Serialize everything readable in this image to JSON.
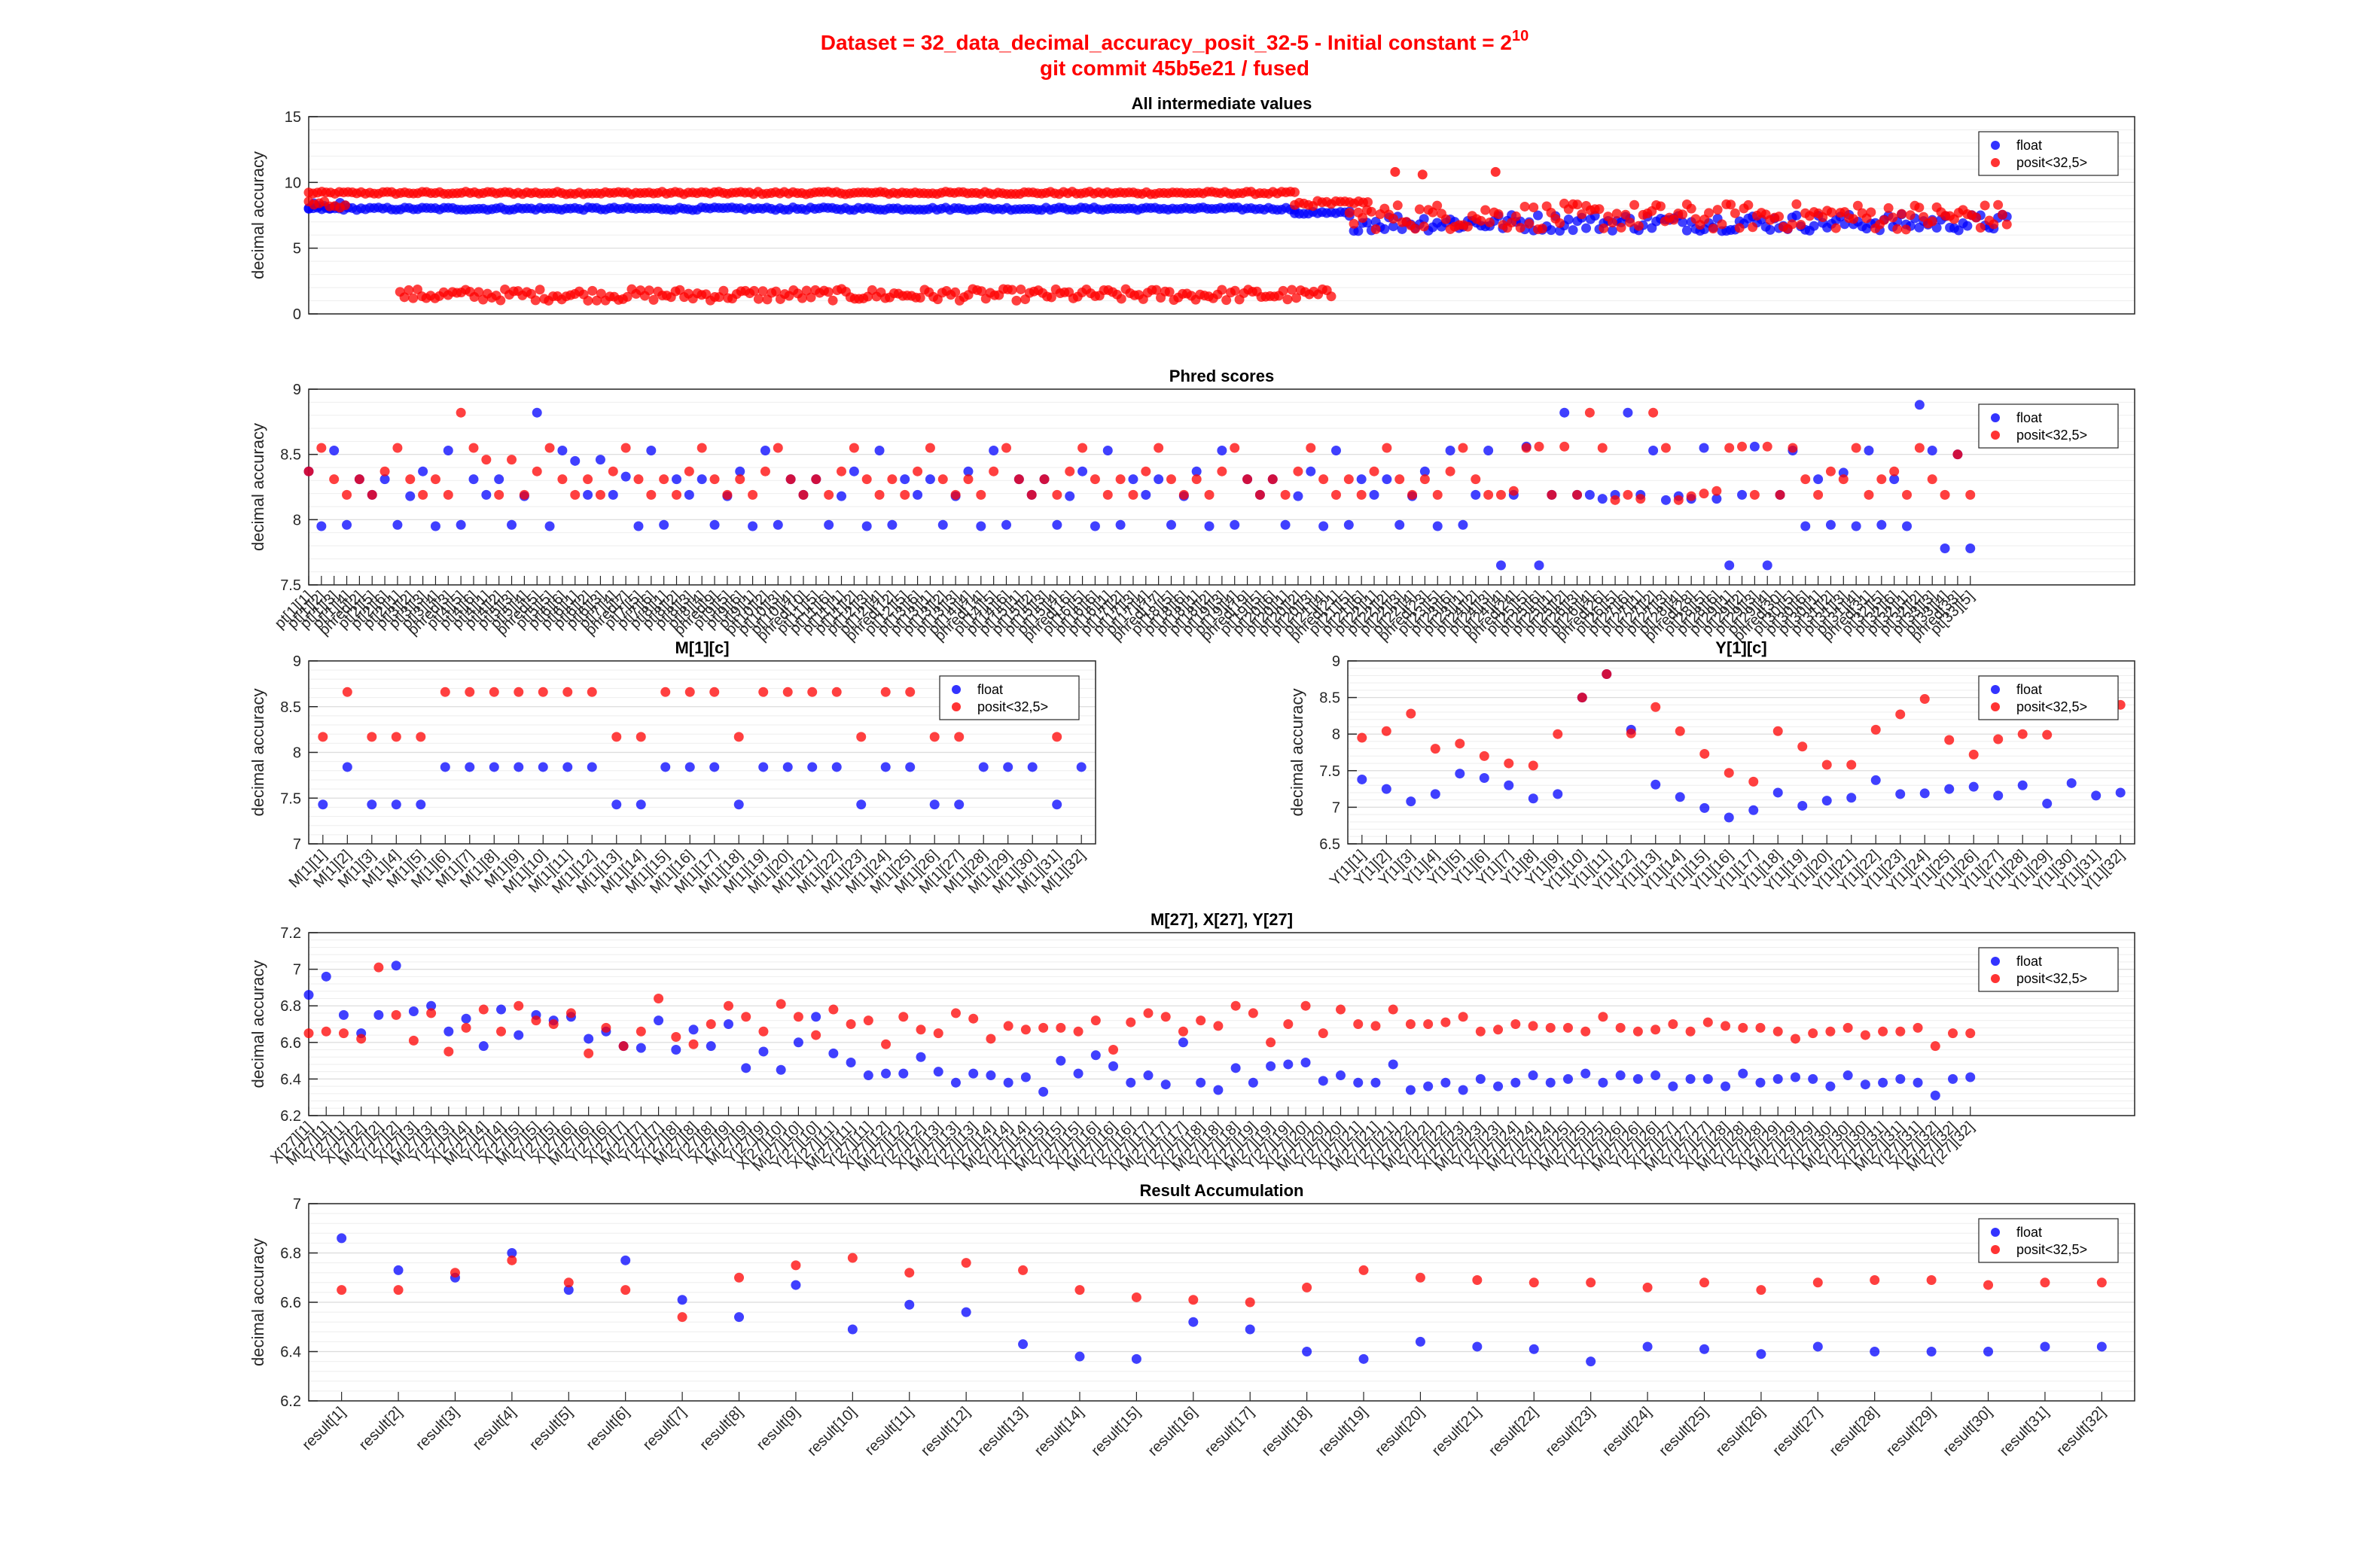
{
  "figure": {
    "title_line1": "Dataset = 32_data_decimal_accuracy_posit_32-5 - Initial constant = 2",
    "title_exponent": "10",
    "title_line2": "git commit 45b5e21 / fused",
    "colors": {
      "title": "#ff0000",
      "float": "#0000ff",
      "posit": "#ff0000"
    }
  },
  "chart_data": [
    {
      "id": "all",
      "type": "scatter",
      "title": "All intermediate values",
      "ylabel": "decimal accuracy",
      "ylim": [
        0,
        15
      ],
      "yticks": [
        0,
        5,
        10,
        15
      ],
      "grid": true,
      "legend_position": "top-right",
      "series": [
        {
          "name": "float"
        },
        {
          "name": "posit<32,5>"
        }
      ],
      "bands": [
        {
          "series": "posit<32,5>",
          "x_from": 0.0,
          "x_to": 0.54,
          "y_from": 9.1,
          "y_to": 9.3
        },
        {
          "series": "float",
          "x_from": 0.0,
          "x_to": 0.54,
          "y_from": 7.9,
          "y_to": 8.1
        },
        {
          "series": "posit<32,5>",
          "x_from": 0.05,
          "x_to": 0.56,
          "y_from": 1.0,
          "y_to": 1.9
        },
        {
          "series": "float",
          "x_from": 0.54,
          "x_to": 0.57,
          "y_from": 7.6,
          "y_to": 7.8
        },
        {
          "series": "posit<32,5>",
          "x_from": 0.54,
          "x_to": 0.58,
          "y_from": 8.2,
          "y_to": 8.6
        },
        {
          "series": "float",
          "x_from": 0.57,
          "x_to": 0.93,
          "y_from": 6.3,
          "y_to": 7.6
        },
        {
          "series": "posit<32,5>",
          "x_from": 0.57,
          "x_to": 0.93,
          "y_from": 6.4,
          "y_to": 8.4
        },
        {
          "series": "float",
          "x_from": 0.0,
          "x_to": 0.02,
          "y_from": 7.7,
          "y_to": 8.6
        },
        {
          "series": "posit<32,5>",
          "x_from": 0.0,
          "x_to": 0.02,
          "y_from": 8.0,
          "y_to": 8.7
        }
      ],
      "outliers": [
        {
          "x": 0.595,
          "y": 10.8
        },
        {
          "x": 0.61,
          "y": 10.6
        },
        {
          "x": 0.65,
          "y": 10.8
        }
      ]
    },
    {
      "id": "phred",
      "type": "scatter",
      "title": "Phred scores",
      "ylabel": "decimal accuracy",
      "ylim": [
        7.5,
        9
      ],
      "yticks": [
        7.5,
        8,
        8.5,
        9
      ],
      "grid": true,
      "legend_position": "top-right",
      "n": 132,
      "series": [
        {
          "name": "float",
          "values": [
            8.37,
            7.95,
            8.53,
            7.96,
            8.31,
            8.19,
            8.31,
            7.96,
            8.18,
            8.37,
            7.95,
            8.53,
            7.96,
            8.31,
            8.19,
            8.31,
            7.96,
            8.18,
            8.82,
            7.95,
            8.53,
            8.45,
            8.19,
            8.46,
            8.19,
            8.33,
            7.95,
            8.53,
            7.96,
            8.31,
            8.19,
            8.31,
            7.96,
            8.18,
            8.37,
            7.95,
            8.53,
            7.96,
            8.31,
            8.19,
            8.31,
            7.96,
            8.18,
            8.37,
            7.95,
            8.53,
            7.96,
            8.31,
            8.19,
            8.31,
            7.96,
            8.18,
            8.37,
            7.95,
            8.53,
            7.96,
            8.31,
            8.19,
            8.31,
            7.96,
            8.18,
            8.37,
            7.95,
            8.53,
            7.96,
            8.31,
            8.19,
            8.31,
            7.96,
            8.18,
            8.37,
            7.95,
            8.53,
            7.96,
            8.31,
            8.19,
            8.31,
            7.96,
            8.18,
            8.37,
            7.95,
            8.53,
            7.96,
            8.31,
            8.19,
            8.31,
            7.96,
            8.18,
            8.37,
            7.95,
            8.53,
            7.96,
            8.19,
            8.53,
            7.65,
            8.19,
            8.56,
            7.65,
            8.19,
            8.82,
            8.19,
            8.19,
            8.16,
            8.19,
            8.82,
            8.19,
            8.53,
            8.15,
            8.18,
            8.16,
            8.55,
            8.16,
            7.65,
            8.19,
            8.56,
            7.65,
            8.19,
            8.53,
            7.95,
            8.31,
            7.96,
            8.36,
            7.95,
            8.53,
            7.96,
            8.31,
            7.95,
            8.88,
            8.53,
            7.78,
            8.5,
            7.78
          ]
        },
        {
          "name": "posit<32,5>",
          "values": [
            8.37,
            8.55,
            8.31,
            8.19,
            8.31,
            8.19,
            8.37,
            8.55,
            8.31,
            8.19,
            8.31,
            8.19,
            8.82,
            8.55,
            8.46,
            8.19,
            8.46,
            8.19,
            8.37,
            8.55,
            8.31,
            8.19,
            8.31,
            8.19,
            8.37,
            8.55,
            8.31,
            8.19,
            8.31,
            8.19,
            8.37,
            8.55,
            8.31,
            8.19,
            8.31,
            8.19,
            8.37,
            8.55,
            8.31,
            8.19,
            8.31,
            8.19,
            8.37,
            8.55,
            8.31,
            8.19,
            8.31,
            8.19,
            8.37,
            8.55,
            8.31,
            8.19,
            8.31,
            8.19,
            8.37,
            8.55,
            8.31,
            8.19,
            8.31,
            8.19,
            8.37,
            8.55,
            8.31,
            8.19,
            8.31,
            8.19,
            8.37,
            8.55,
            8.31,
            8.19,
            8.31,
            8.19,
            8.37,
            8.55,
            8.31,
            8.19,
            8.31,
            8.19,
            8.37,
            8.55,
            8.31,
            8.19,
            8.31,
            8.19,
            8.37,
            8.55,
            8.31,
            8.19,
            8.31,
            8.19,
            8.37,
            8.55,
            8.31,
            8.19,
            8.19,
            8.22,
            8.55,
            8.56,
            8.19,
            8.56,
            8.19,
            8.82,
            8.55,
            8.15,
            8.19,
            8.16,
            8.82,
            8.55,
            8.15,
            8.18,
            8.2,
            8.22,
            8.55,
            8.56,
            8.19,
            8.56,
            8.19,
            8.55,
            8.31,
            8.19,
            8.37,
            8.31,
            8.55,
            8.19,
            8.31,
            8.37,
            8.19,
            8.55,
            8.31,
            8.19,
            8.5,
            8.19
          ]
        }
      ]
    },
    {
      "id": "M",
      "type": "scatter",
      "title": "M[1][c]",
      "ylabel": "decimal accuracy",
      "ylim": [
        7,
        9
      ],
      "yticks": [
        7,
        7.5,
        8,
        8.5,
        9
      ],
      "grid": true,
      "legend_position": "top-right",
      "categories": [
        "M[1][1]",
        "M[1][2]",
        "M[1][3]",
        "M[1][4]",
        "M[1][5]",
        "M[1][6]",
        "M[1][7]",
        "M[1][8]",
        "M[1][9]",
        "M[1][10]",
        "M[1][11]",
        "M[1][12]",
        "M[1][13]",
        "M[1][14]",
        "M[1][15]",
        "M[1][16]",
        "M[1][17]",
        "M[1][18]",
        "M[1][19]",
        "M[1][20]",
        "M[1][21]",
        "M[1][22]",
        "M[1][23]",
        "M[1][24]",
        "M[1][25]",
        "M[1][26]",
        "M[1][27]",
        "M[1][28]",
        "M[1][29]",
        "M[1][30]",
        "M[1][31]",
        "M[1][32]"
      ],
      "series": [
        {
          "name": "float",
          "values": [
            7.43,
            7.84,
            7.43,
            7.43,
            7.43,
            7.84,
            7.84,
            7.84,
            7.84,
            7.84,
            7.84,
            7.84,
            7.43,
            7.43,
            7.84,
            7.84,
            7.84,
            7.43,
            7.84,
            7.84,
            7.84,
            7.84,
            7.43,
            7.84,
            7.84,
            7.43,
            7.43,
            7.84,
            7.84,
            7.84,
            7.43,
            7.84
          ]
        },
        {
          "name": "posit<32,5>",
          "values": [
            8.17,
            8.66,
            8.17,
            8.17,
            8.17,
            8.66,
            8.66,
            8.66,
            8.66,
            8.66,
            8.66,
            8.66,
            8.17,
            8.17,
            8.66,
            8.66,
            8.66,
            8.17,
            8.66,
            8.66,
            8.66,
            8.66,
            8.17,
            8.66,
            8.66,
            8.17,
            8.17,
            null,
            null,
            null,
            8.17,
            null
          ]
        }
      ]
    },
    {
      "id": "Y",
      "type": "scatter",
      "title": "Y[1][c]",
      "ylabel": "decimal accuracy",
      "ylim": [
        6.5,
        9
      ],
      "yticks": [
        6.5,
        7,
        7.5,
        8,
        8.5,
        9
      ],
      "grid": true,
      "legend_position": "top-right",
      "categories": [
        "Y[1][1]",
        "Y[1][2]",
        "Y[1][3]",
        "Y[1][4]",
        "Y[1][5]",
        "Y[1][6]",
        "Y[1][7]",
        "Y[1][8]",
        "Y[1][9]",
        "Y[1][10]",
        "Y[1][11]",
        "Y[1][12]",
        "Y[1][13]",
        "Y[1][14]",
        "Y[1][15]",
        "Y[1][16]",
        "Y[1][17]",
        "Y[1][18]",
        "Y[1][19]",
        "Y[1][20]",
        "Y[1][21]",
        "Y[1][22]",
        "Y[1][23]",
        "Y[1][24]",
        "Y[1][25]",
        "Y[1][26]",
        "Y[1][27]",
        "Y[1][28]",
        "Y[1][29]",
        "Y[1][30]",
        "Y[1][31]",
        "Y[1][32]"
      ],
      "series": [
        {
          "name": "float",
          "values": [
            7.38,
            7.25,
            7.08,
            7.18,
            7.46,
            7.4,
            7.3,
            7.12,
            7.18,
            8.5,
            8.82,
            8.06,
            7.31,
            7.14,
            6.99,
            6.86,
            6.96,
            7.2,
            7.02,
            7.09,
            7.13,
            7.37,
            7.18,
            7.19,
            7.25,
            7.28,
            7.16,
            7.3,
            7.05,
            7.33,
            7.16,
            7.2
          ]
        },
        {
          "name": "posit<32,5>",
          "values": [
            7.95,
            8.04,
            8.28,
            7.8,
            7.87,
            7.7,
            7.6,
            7.57,
            8.0,
            8.5,
            8.82,
            8.01,
            8.37,
            8.04,
            7.73,
            7.47,
            7.35,
            8.04,
            7.83,
            7.58,
            7.58,
            8.06,
            8.27,
            8.48,
            7.92,
            7.72,
            7.93,
            8.0,
            7.99,
            null,
            8.32,
            8.4
          ]
        }
      ]
    },
    {
      "id": "MXY27",
      "type": "scatter",
      "title": "M[27], X[27], Y[27]",
      "ylabel": "decimal accuracy",
      "ylim": [
        6.2,
        7.2
      ],
      "yticks": [
        6.2,
        6.4,
        6.6,
        6.8,
        7,
        7.2
      ],
      "grid": true,
      "legend_position": "top-right",
      "n": 96,
      "series": [
        {
          "name": "float",
          "values": [
            6.86,
            6.96,
            6.75,
            6.65,
            6.75,
            7.02,
            6.77,
            6.8,
            6.66,
            6.73,
            6.58,
            6.78,
            6.64,
            6.75,
            6.72,
            6.74,
            6.62,
            6.66,
            6.58,
            6.57,
            6.72,
            6.56,
            6.67,
            6.58,
            6.7,
            6.46,
            6.55,
            6.45,
            6.6,
            6.74,
            6.54,
            6.49,
            6.42,
            6.43,
            6.43,
            6.52,
            6.44,
            6.38,
            6.43,
            6.42,
            6.38,
            6.41,
            6.33,
            6.5,
            6.43,
            6.53,
            6.47,
            6.38,
            6.42,
            6.37,
            6.6,
            6.38,
            6.34,
            6.46,
            6.38,
            6.47,
            6.48,
            6.49,
            6.39,
            6.42,
            6.38,
            6.38,
            6.48,
            6.34,
            6.36,
            6.38,
            6.34,
            6.4,
            6.36,
            6.38,
            6.42,
            6.38,
            6.4,
            6.43,
            6.38,
            6.42,
            6.4,
            6.42,
            6.36,
            6.4,
            6.4,
            6.36,
            6.43,
            6.38,
            6.4,
            6.41,
            6.4,
            6.36,
            6.42,
            6.37,
            6.38,
            6.4,
            6.38,
            6.31,
            6.4,
            6.41
          ]
        },
        {
          "name": "posit<32,5>",
          "values": [
            6.65,
            6.66,
            6.65,
            6.62,
            7.01,
            6.75,
            6.61,
            6.76,
            6.55,
            6.68,
            6.78,
            6.66,
            6.8,
            6.72,
            6.7,
            6.76,
            6.54,
            6.68,
            6.58,
            6.66,
            6.84,
            6.63,
            6.59,
            6.7,
            6.8,
            6.74,
            6.66,
            6.81,
            6.74,
            6.64,
            6.78,
            6.7,
            6.72,
            6.59,
            6.74,
            6.67,
            6.65,
            6.76,
            6.73,
            6.62,
            6.69,
            6.67,
            6.68,
            6.68,
            6.66,
            6.72,
            6.56,
            6.71,
            6.76,
            6.74,
            6.66,
            6.72,
            6.69,
            6.8,
            6.76,
            6.6,
            6.7,
            6.8,
            6.65,
            6.78,
            6.7,
            6.69,
            6.78,
            6.7,
            6.7,
            6.71,
            6.74,
            6.66,
            6.67,
            6.7,
            6.69,
            6.68,
            6.68,
            6.66,
            6.74,
            6.68,
            6.66,
            6.67,
            6.7,
            6.66,
            6.71,
            6.69,
            6.68,
            6.68,
            6.66,
            6.62,
            6.65,
            6.66,
            6.68,
            6.64,
            6.66,
            6.66,
            6.68,
            6.58,
            6.65,
            6.65
          ]
        }
      ]
    },
    {
      "id": "result",
      "type": "scatter",
      "title": "Result Accumulation",
      "ylabel": "decimal accuracy",
      "ylim": [
        6.2,
        7
      ],
      "yticks": [
        6.2,
        6.4,
        6.6,
        6.8,
        7
      ],
      "grid": true,
      "legend_position": "top-right",
      "categories": [
        "result[1]",
        "result[2]",
        "result[3]",
        "result[4]",
        "result[5]",
        "result[6]",
        "result[7]",
        "result[8]",
        "result[9]",
        "result[10]",
        "result[11]",
        "result[12]",
        "result[13]",
        "result[14]",
        "result[15]",
        "result[16]",
        "result[17]",
        "result[18]",
        "result[19]",
        "result[20]",
        "result[21]",
        "result[22]",
        "result[23]",
        "result[24]",
        "result[25]",
        "result[26]",
        "result[27]",
        "result[28]",
        "result[29]",
        "result[30]",
        "result[31]",
        "result[32]"
      ],
      "series": [
        {
          "name": "float",
          "values": [
            6.86,
            6.73,
            6.7,
            6.8,
            6.65,
            6.77,
            6.61,
            6.54,
            6.67,
            6.49,
            6.59,
            6.56,
            6.43,
            6.38,
            6.37,
            6.52,
            6.49,
            6.4,
            6.37,
            6.44,
            6.42,
            6.41,
            6.36,
            6.42,
            6.41,
            6.39,
            6.42,
            6.4,
            6.4,
            6.4,
            6.42,
            6.42
          ]
        },
        {
          "name": "posit<32,5>",
          "values": [
            6.65,
            6.65,
            6.72,
            6.77,
            6.68,
            6.65,
            6.54,
            6.7,
            6.75,
            6.78,
            6.72,
            6.76,
            6.73,
            6.65,
            6.62,
            6.61,
            6.6,
            6.66,
            6.73,
            6.7,
            6.69,
            6.68,
            6.68,
            6.66,
            6.68,
            6.65,
            6.68,
            6.69,
            6.69,
            6.67,
            6.68,
            6.68
          ]
        }
      ]
    }
  ]
}
